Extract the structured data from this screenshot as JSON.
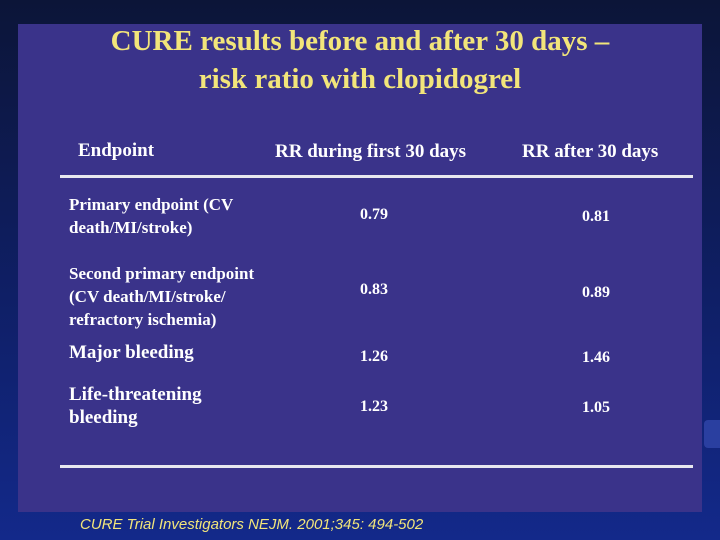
{
  "title": {
    "line1": "CURE results before and after 30 days –",
    "line2": "risk ratio with clopidogrel"
  },
  "table": {
    "headers": [
      "Endpoint",
      "RR during first 30 days",
      "RR after 30 days"
    ],
    "rows": [
      {
        "endpoint_lines": [
          "Primary endpoint (CV",
          "death/MI/stroke)"
        ],
        "rr_first_30": "0.79",
        "rr_after_30": "0.81"
      },
      {
        "endpoint_lines": [
          "Second primary endpoint",
          "(CV death/MI/stroke/",
          "refractory ischemia)"
        ],
        "rr_first_30": "0.83",
        "rr_after_30": "0.89"
      },
      {
        "endpoint_lines": [
          "Major bleeding"
        ],
        "rr_first_30": "1.26",
        "rr_after_30": "1.46"
      },
      {
        "endpoint_lines": [
          "Life-threatening",
          "bleeding"
        ],
        "rr_first_30": "1.23",
        "rr_after_30": "1.05"
      }
    ]
  },
  "citation": "CURE Trial Investigators NEJM. 2001;345: 494-502",
  "colors": {
    "title": "#f2e57a",
    "panel": "#3a338a",
    "text": "#ffffff",
    "citation": "#f2e57a"
  }
}
